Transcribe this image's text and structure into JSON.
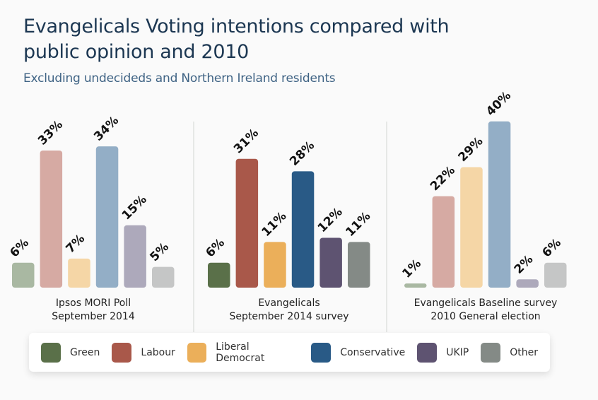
{
  "header": {
    "title": "Evangelicals Voting intentions compared with public opinion and 2010",
    "subtitle": "Excluding undecideds and Northern Ireland residents"
  },
  "chart_data": {
    "type": "bar",
    "title": "Evangelicals Voting intentions compared with public opinion and 2010",
    "subtitle": "Excluding undecideds and Northern Ireland residents",
    "categories": [
      "Green",
      "Labour",
      "Liberal Democrat",
      "Conservative",
      "UKIP",
      "Other"
    ],
    "unit": "%",
    "ylim": [
      0,
      40
    ],
    "grid": false,
    "legend_position": "bottom",
    "groups": [
      {
        "name": "Ipsos MORI Poll September 2014",
        "label_lines": [
          "Ipsos MORI Poll",
          "September 2014"
        ],
        "values": [
          6,
          33,
          7,
          34,
          15,
          5
        ],
        "colors": [
          "#a9b8a2",
          "#d6aaa3",
          "#f5d6a6",
          "#93aec6",
          "#ada9bb",
          "#c5c6c6"
        ]
      },
      {
        "name": "Evangelicals September 2014 survey",
        "label_lines": [
          "Evangelicals",
          "September 2014 survey"
        ],
        "values": [
          6,
          31,
          11,
          28,
          12,
          11
        ],
        "colors": [
          "#5a7049",
          "#a9584a",
          "#ebaf5a",
          "#295a86",
          "#5e5371",
          "#848a86"
        ]
      },
      {
        "name": "Evangelicals Baseline survey 2010 General election",
        "label_lines": [
          "Evangelicals Baseline survey",
          "2010 General election"
        ],
        "values": [
          1,
          22,
          29,
          40,
          2,
          6
        ],
        "colors": [
          "#a9b8a2",
          "#d6aaa3",
          "#f5d6a6",
          "#93aec6",
          "#ada9bb",
          "#c5c6c6"
        ]
      }
    ],
    "legend": [
      {
        "label": "Green",
        "color": "#5a7049"
      },
      {
        "label": "Labour",
        "color": "#a9584a"
      },
      {
        "label": "Liberal Democrat",
        "color": "#ebaf5a"
      },
      {
        "label": "Conservative",
        "color": "#295a86"
      },
      {
        "label": "UKIP",
        "color": "#5e5371"
      },
      {
        "label": "Other",
        "color": "#848a86"
      }
    ]
  }
}
